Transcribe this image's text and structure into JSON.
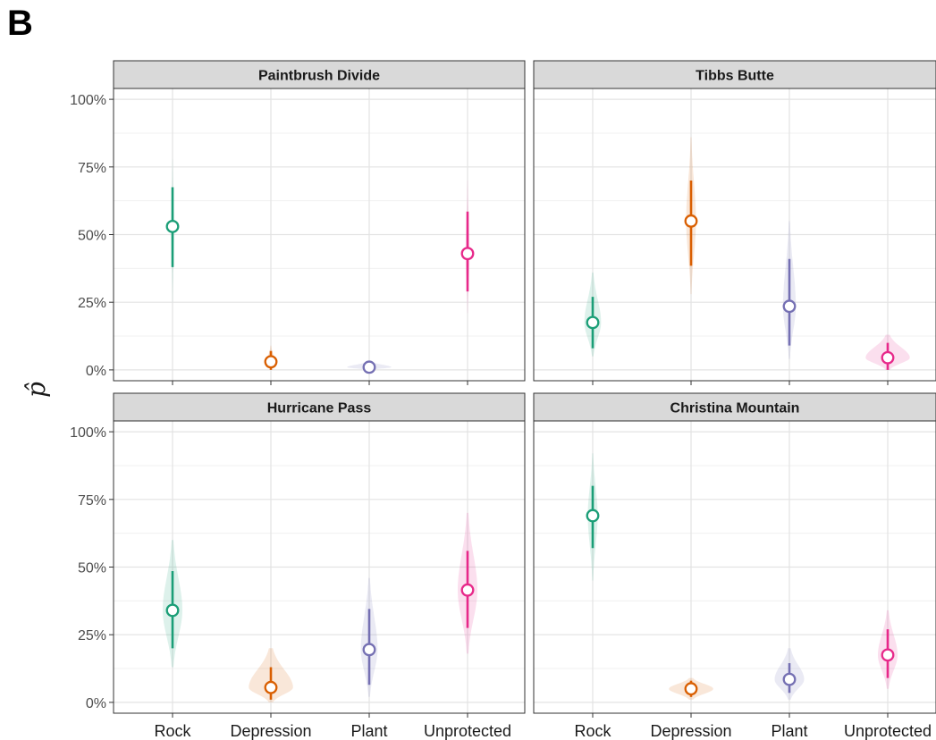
{
  "figure": {
    "panel_letter": "B"
  },
  "chart_data": {
    "type": "violin",
    "ylabel": "p̂",
    "ylim": [
      -0.04,
      1.04
    ],
    "yticks": [
      0,
      0.25,
      0.5,
      0.75,
      1.0
    ],
    "ytick_labels": [
      "0%",
      "25%",
      "50%",
      "75%",
      "100%"
    ],
    "categories": [
      "Rock",
      "Depression",
      "Plant",
      "Unprotected"
    ],
    "colors": {
      "Rock": "#1b9e77",
      "Depression": "#d95f02",
      "Plant": "#7570b3",
      "Unprotected": "#e7298a"
    },
    "grid": true,
    "strip_fill": "#d9d9d9",
    "panels": [
      {
        "title": "Paintbrush Divide",
        "series": [
          {
            "category": "Rock",
            "estimate": 0.53,
            "lower": 0.38,
            "upper": 0.675,
            "violin_low": 0.25,
            "violin_high": 0.78,
            "violin_halfwidth": 0.03
          },
          {
            "category": "Depression",
            "estimate": 0.03,
            "lower": 0.0,
            "upper": 0.07,
            "violin_low": 0.0,
            "violin_high": 0.09,
            "violin_halfwidth": 0.08
          },
          {
            "category": "Plant",
            "estimate": 0.01,
            "lower": 0.0,
            "upper": 0.02,
            "violin_low": 0.0,
            "violin_high": 0.03,
            "violin_halfwidth": 0.45
          },
          {
            "category": "Unprotected",
            "estimate": 0.43,
            "lower": 0.29,
            "upper": 0.585,
            "violin_low": 0.21,
            "violin_high": 0.7,
            "violin_halfwidth": 0.04
          }
        ]
      },
      {
        "title": "Tibbs Butte",
        "series": [
          {
            "category": "Rock",
            "estimate": 0.175,
            "lower": 0.08,
            "upper": 0.27,
            "violin_low": 0.05,
            "violin_high": 0.36,
            "violin_halfwidth": 0.17
          },
          {
            "category": "Depression",
            "estimate": 0.55,
            "lower": 0.385,
            "upper": 0.7,
            "violin_low": 0.28,
            "violin_high": 0.86,
            "violin_halfwidth": 0.1
          },
          {
            "category": "Plant",
            "estimate": 0.235,
            "lower": 0.09,
            "upper": 0.41,
            "violin_low": 0.04,
            "violin_high": 0.55,
            "violin_halfwidth": 0.13
          },
          {
            "category": "Unprotected",
            "estimate": 0.045,
            "lower": 0.0,
            "upper": 0.1,
            "violin_low": 0.0,
            "violin_high": 0.13,
            "violin_halfwidth": 0.45
          }
        ]
      },
      {
        "title": "Hurricane Pass",
        "series": [
          {
            "category": "Rock",
            "estimate": 0.34,
            "lower": 0.2,
            "upper": 0.485,
            "violin_low": 0.13,
            "violin_high": 0.6,
            "violin_halfwidth": 0.2
          },
          {
            "category": "Depression",
            "estimate": 0.055,
            "lower": 0.01,
            "upper": 0.13,
            "violin_low": 0.0,
            "violin_high": 0.2,
            "violin_halfwidth": 0.45
          },
          {
            "category": "Plant",
            "estimate": 0.195,
            "lower": 0.065,
            "upper": 0.345,
            "violin_low": 0.02,
            "violin_high": 0.46,
            "violin_halfwidth": 0.17
          },
          {
            "category": "Unprotected",
            "estimate": 0.415,
            "lower": 0.275,
            "upper": 0.56,
            "violin_low": 0.18,
            "violin_high": 0.7,
            "violin_halfwidth": 0.2
          }
        ]
      },
      {
        "title": "Christina Mountain",
        "series": [
          {
            "category": "Rock",
            "estimate": 0.69,
            "lower": 0.57,
            "upper": 0.8,
            "violin_low": 0.45,
            "violin_high": 0.92,
            "violin_halfwidth": 0.1
          },
          {
            "category": "Depression",
            "estimate": 0.05,
            "lower": 0.02,
            "upper": 0.08,
            "violin_low": 0.01,
            "violin_high": 0.09,
            "violin_halfwidth": 0.45
          },
          {
            "category": "Plant",
            "estimate": 0.085,
            "lower": 0.035,
            "upper": 0.145,
            "violin_low": 0.01,
            "violin_high": 0.2,
            "violin_halfwidth": 0.3
          },
          {
            "category": "Unprotected",
            "estimate": 0.175,
            "lower": 0.09,
            "upper": 0.27,
            "violin_low": 0.05,
            "violin_high": 0.34,
            "violin_halfwidth": 0.2
          }
        ]
      }
    ]
  }
}
